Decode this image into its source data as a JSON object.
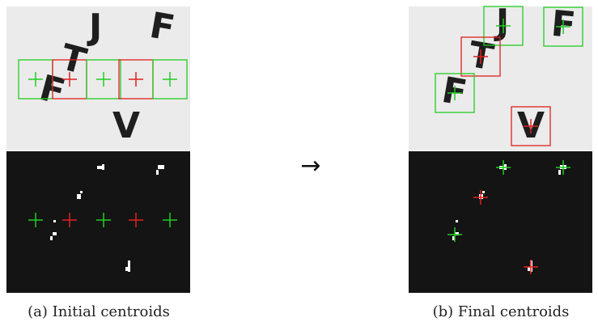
{
  "panels": [
    {
      "letters": [
        "J",
        "F",
        "T",
        "F",
        "V"
      ],
      "caption": "(a) Initial centroids"
    },
    {
      "letters": [
        "J",
        "F",
        "T",
        "F",
        "V"
      ],
      "caption": "(b) Final centroids"
    }
  ],
  "arrow": "→"
}
